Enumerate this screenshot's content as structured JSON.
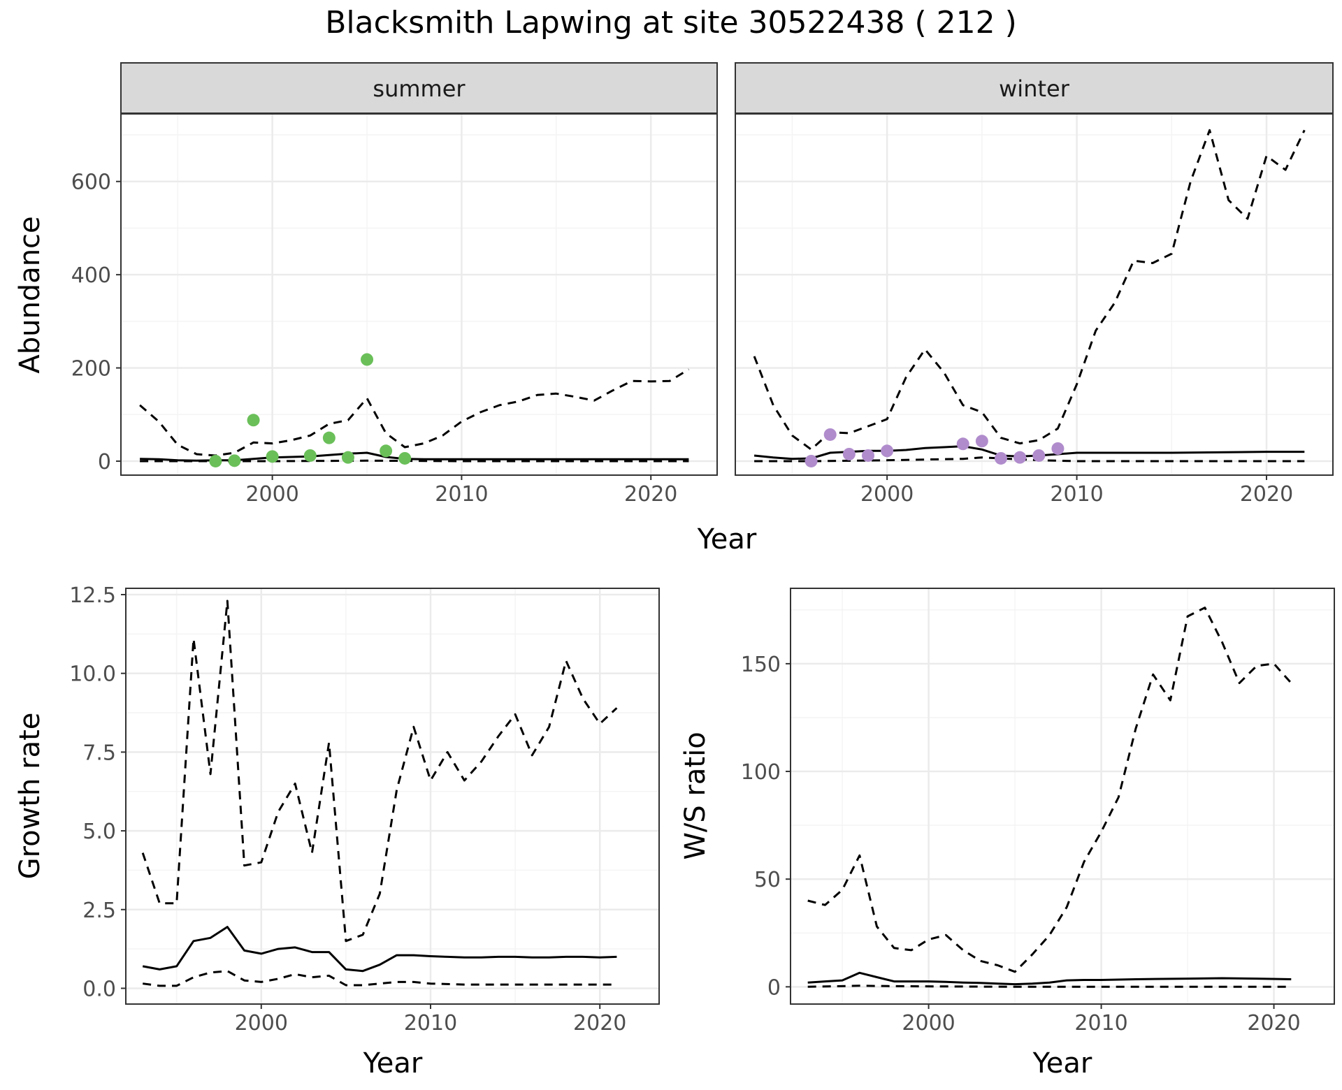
{
  "title": "Blacksmith Lapwing at site 30522438 ( 212 )",
  "colors": {
    "summer_points": "#6abf59",
    "winter_points": "#b08ccc",
    "line": "#000000",
    "strip_fill": "#d9d9d9",
    "grid_major": "#ebebeb",
    "grid_minor": "#f4f4f4",
    "panel_border": "#333333"
  },
  "chart_data": [
    {
      "id": "abundance",
      "type": "line",
      "facet_by": "season",
      "xlabel": "Year",
      "ylabel": "Abundance",
      "xlim": [
        1992,
        2023.5
      ],
      "ylim": [
        -30,
        745
      ],
      "xticks": [
        2000,
        2010,
        2020
      ],
      "yticks": [
        0,
        200,
        400,
        600
      ],
      "grid": true,
      "facets": [
        {
          "strip": "summer",
          "point_color_key": "summer_points",
          "points": [
            [
              1997,
              0
            ],
            [
              1998,
              1
            ],
            [
              1999,
              88
            ],
            [
              2000,
              10
            ],
            [
              2002,
              12
            ],
            [
              2003,
              50
            ],
            [
              2004,
              8
            ],
            [
              2005,
              218
            ],
            [
              2006,
              22
            ],
            [
              2007,
              6
            ]
          ],
          "series": [
            {
              "style": "solid",
              "x": [
                1993,
                1994,
                1995,
                1996,
                1997,
                1998,
                1999,
                2000,
                2001,
                2002,
                2003,
                2004,
                2005,
                2006,
                2007,
                2008,
                2010,
                2015,
                2020,
                2022
              ],
              "y": [
                5,
                4,
                2,
                1,
                2,
                2,
                5,
                8,
                9,
                10,
                13,
                16,
                18,
                9,
                5,
                4,
                4,
                4,
                4,
                4
              ]
            },
            {
              "style": "dashed",
              "x": [
                1993,
                1994,
                1995,
                1996,
                1997,
                1998,
                1999,
                2000,
                2001,
                2002,
                2003,
                2004,
                2005,
                2006,
                2007,
                2008,
                2009,
                2010,
                2011,
                2012,
                2013,
                2014,
                2015,
                2016,
                2017,
                2018,
                2019,
                2020,
                2021,
                2022
              ],
              "y": [
                120,
                85,
                35,
                15,
                12,
                18,
                40,
                38,
                45,
                55,
                80,
                88,
                135,
                60,
                30,
                38,
                55,
                85,
                105,
                120,
                128,
                142,
                145,
                138,
                130,
                152,
                172,
                171,
                172,
                197
              ]
            },
            {
              "style": "dashed",
              "x": [
                1993,
                1996,
                2000,
                2005,
                2010,
                2015,
                2022
              ],
              "y": [
                0,
                0,
                0,
                1,
                0,
                0,
                0
              ]
            }
          ]
        },
        {
          "strip": "winter",
          "point_color_key": "winter_points",
          "points": [
            [
              1996,
              0
            ],
            [
              1997,
              57
            ],
            [
              1998,
              15
            ],
            [
              1999,
              12
            ],
            [
              2000,
              22
            ],
            [
              2004,
              37
            ],
            [
              2005,
              43
            ],
            [
              2006,
              6
            ],
            [
              2007,
              8
            ],
            [
              2008,
              12
            ],
            [
              2009,
              27
            ]
          ],
          "series": [
            {
              "style": "solid",
              "x": [
                1993,
                1994,
                1995,
                1996,
                1997,
                1998,
                1999,
                2000,
                2001,
                2002,
                2003,
                2004,
                2005,
                2006,
                2007,
                2008,
                2009,
                2010,
                2015,
                2020,
                2022
              ],
              "y": [
                12,
                8,
                5,
                6,
                18,
                20,
                22,
                22,
                24,
                28,
                30,
                32,
                25,
                12,
                10,
                12,
                15,
                18,
                18,
                20,
                20
              ]
            },
            {
              "style": "dashed",
              "x": [
                1993,
                1994,
                1995,
                1996,
                1997,
                1998,
                1999,
                2000,
                2001,
                2002,
                2003,
                2004,
                2005,
                2006,
                2007,
                2008,
                2009,
                2010,
                2011,
                2012,
                2013,
                2014,
                2015,
                2016,
                2017,
                2018,
                2019,
                2020,
                2021,
                2022
              ],
              "y": [
                225,
                120,
                55,
                25,
                62,
                60,
                75,
                90,
                180,
                240,
                190,
                120,
                105,
                50,
                38,
                45,
                70,
                165,
                280,
                340,
                430,
                425,
                445,
                600,
                710,
                560,
                520,
                655,
                625,
                710
              ]
            },
            {
              "style": "dashed",
              "x": [
                1993,
                1996,
                2000,
                2004,
                2005,
                2008,
                2010,
                2015,
                2022
              ],
              "y": [
                0,
                0,
                2,
                5,
                8,
                2,
                0,
                0,
                0
              ]
            }
          ]
        }
      ]
    },
    {
      "id": "growth",
      "type": "line",
      "xlabel": "Year",
      "ylabel": "Growth rate",
      "xlim": [
        1992,
        2023.5
      ],
      "ylim": [
        -0.5,
        12.7
      ],
      "xticks": [
        2000,
        2010,
        2020
      ],
      "yticks": [
        0.0,
        2.5,
        5.0,
        7.5,
        10.0,
        12.5
      ],
      "ytick_labels": [
        "0.0",
        "2.5",
        "5.0",
        "7.5",
        "10.0",
        "12.5"
      ],
      "grid": true,
      "series": [
        {
          "style": "solid",
          "x": [
            1993,
            1994,
            1995,
            1996,
            1997,
            1998,
            1999,
            2000,
            2001,
            2002,
            2003,
            2004,
            2005,
            2006,
            2007,
            2008,
            2009,
            2010,
            2011,
            2012,
            2013,
            2014,
            2015,
            2016,
            2017,
            2018,
            2019,
            2020,
            2021
          ],
          "y": [
            0.7,
            0.6,
            0.7,
            1.5,
            1.6,
            1.95,
            1.2,
            1.1,
            1.25,
            1.3,
            1.15,
            1.15,
            0.6,
            0.55,
            0.75,
            1.05,
            1.05,
            1.02,
            1.0,
            0.98,
            0.98,
            1.0,
            1.0,
            0.98,
            0.98,
            1.0,
            1.0,
            0.98,
            1.0
          ]
        },
        {
          "style": "dashed",
          "x": [
            1993,
            1994,
            1995,
            1996,
            1997,
            1998,
            1999,
            2000,
            2001,
            2002,
            2003,
            2004,
            2005,
            2006,
            2007,
            2008,
            2009,
            2010,
            2011,
            2012,
            2013,
            2014,
            2015,
            2016,
            2017,
            2018,
            2019,
            2020,
            2021
          ],
          "y": [
            4.3,
            2.7,
            2.7,
            11.1,
            6.8,
            12.3,
            3.9,
            4.0,
            5.6,
            6.5,
            4.3,
            7.8,
            1.5,
            1.7,
            3.0,
            6.3,
            8.3,
            6.6,
            7.5,
            6.6,
            7.2,
            8.0,
            8.7,
            7.4,
            8.3,
            10.4,
            9.2,
            8.4,
            8.9
          ]
        },
        {
          "style": "dashed",
          "x": [
            1993,
            1994,
            1995,
            1996,
            1997,
            1998,
            1999,
            2000,
            2001,
            2002,
            2003,
            2004,
            2005,
            2006,
            2007,
            2008,
            2009,
            2010,
            2012,
            2015,
            2018,
            2021
          ],
          "y": [
            0.15,
            0.08,
            0.08,
            0.35,
            0.5,
            0.55,
            0.25,
            0.2,
            0.3,
            0.45,
            0.35,
            0.4,
            0.1,
            0.1,
            0.15,
            0.2,
            0.2,
            0.15,
            0.12,
            0.12,
            0.12,
            0.12
          ]
        }
      ]
    },
    {
      "id": "ratio",
      "type": "line",
      "xlabel": "Year",
      "ylabel": "W/S ratio",
      "xlim": [
        1992,
        2023.5
      ],
      "ylim": [
        -8,
        185
      ],
      "xticks": [
        2000,
        2010,
        2020
      ],
      "yticks": [
        0,
        50,
        100,
        150
      ],
      "grid": true,
      "series": [
        {
          "style": "solid",
          "x": [
            1993,
            1994,
            1995,
            1996,
            1997,
            1998,
            1999,
            2000,
            2001,
            2002,
            2003,
            2004,
            2005,
            2006,
            2007,
            2008,
            2009,
            2010,
            2012,
            2015,
            2017,
            2019,
            2021
          ],
          "y": [
            2,
            2.5,
            3,
            6.5,
            4.5,
            2.5,
            2.5,
            2.5,
            2.3,
            2,
            1.8,
            1.5,
            1.2,
            1.5,
            2,
            3,
            3.2,
            3.2,
            3.5,
            3.8,
            4,
            3.8,
            3.5
          ]
        },
        {
          "style": "dashed",
          "x": [
            1993,
            1994,
            1995,
            1996,
            1997,
            1998,
            1999,
            2000,
            2001,
            2002,
            2003,
            2004,
            2005,
            2006,
            2007,
            2008,
            2009,
            2010,
            2011,
            2012,
            2013,
            2014,
            2015,
            2016,
            2017,
            2018,
            2019,
            2020,
            2021
          ],
          "y": [
            40,
            38,
            45,
            61,
            28,
            18,
            17,
            22,
            24,
            17,
            12,
            10,
            7,
            15,
            24,
            37,
            58,
            72,
            88,
            120,
            145,
            133,
            172,
            176,
            160,
            141,
            149,
            150,
            141
          ]
        },
        {
          "style": "dashed",
          "x": [
            1993,
            1996,
            1998,
            2005,
            2010,
            2015,
            2021
          ],
          "y": [
            0,
            0.5,
            0.3,
            0,
            0,
            0,
            0
          ]
        }
      ]
    }
  ]
}
